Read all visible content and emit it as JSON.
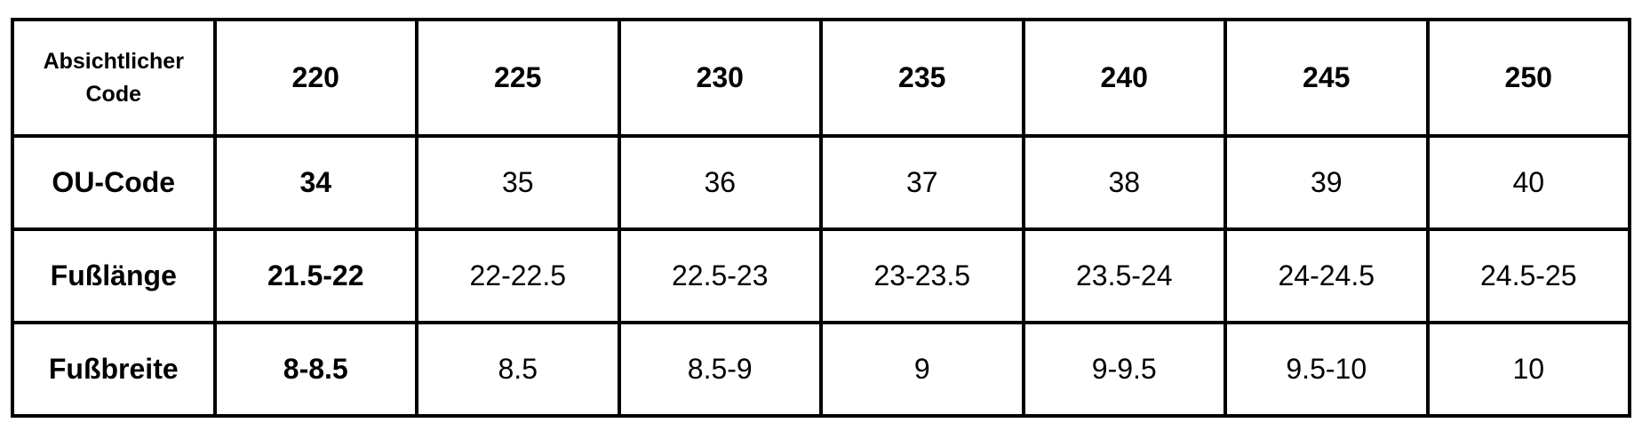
{
  "table": {
    "corner_label": "Absichtlicher Code",
    "header": [
      "220",
      "225",
      "230",
      "235",
      "240",
      "245",
      "250"
    ],
    "rows": [
      {
        "label": "OU-Code",
        "values": [
          "34",
          "35",
          "36",
          "37",
          "38",
          "39",
          "40"
        ]
      },
      {
        "label": "Fußlänge",
        "values": [
          "21.5-22",
          "22-22.5",
          "22.5-23",
          "23-23.5",
          "23.5-24",
          "24-24.5",
          "24.5-25"
        ]
      },
      {
        "label": "Fußbreite",
        "values": [
          "8-8.5",
          "8.5",
          "8.5-9",
          "9",
          "9-9.5",
          "9.5-10",
          "10"
        ]
      }
    ]
  }
}
